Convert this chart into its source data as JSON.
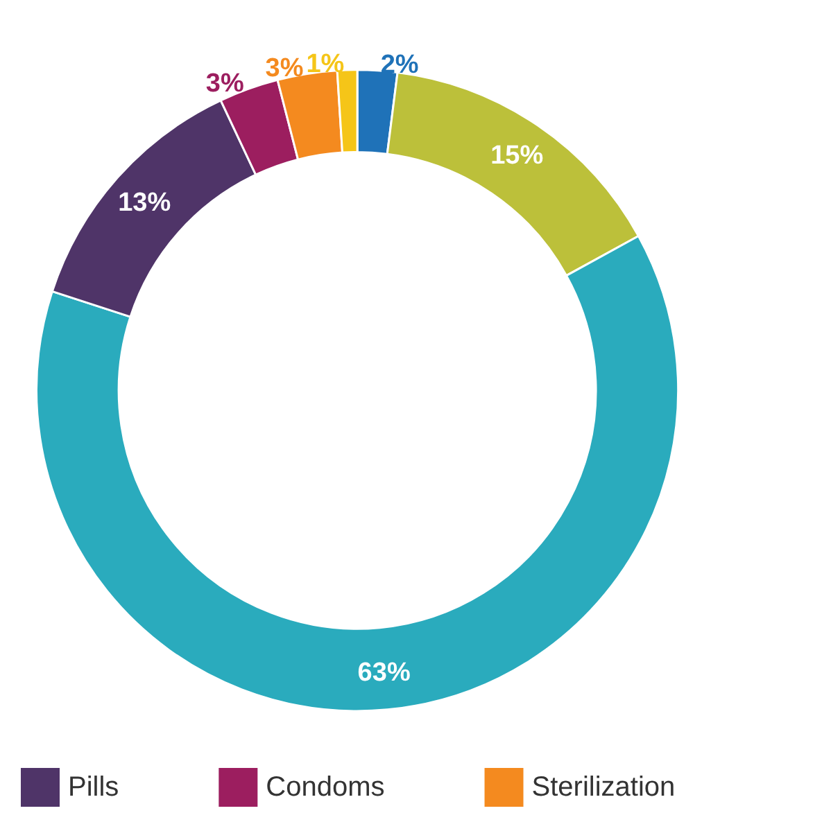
{
  "chart_data": {
    "type": "donut",
    "categories": [
      null,
      null,
      null,
      "Pills",
      "Condoms",
      "Sterilization",
      null
    ],
    "values": [
      2,
      15,
      63,
      13,
      3,
      3,
      1
    ],
    "value_labels": [
      "2%",
      "15%",
      "63%",
      "13%",
      "3%",
      "3%",
      "1%"
    ],
    "colors": [
      "#1f72b8",
      "#bcc03a",
      "#2aabbd",
      "#4f3468",
      "#9c1e5f",
      "#f48a1f",
      "#f5c518"
    ],
    "legend": "bottom"
  }
}
